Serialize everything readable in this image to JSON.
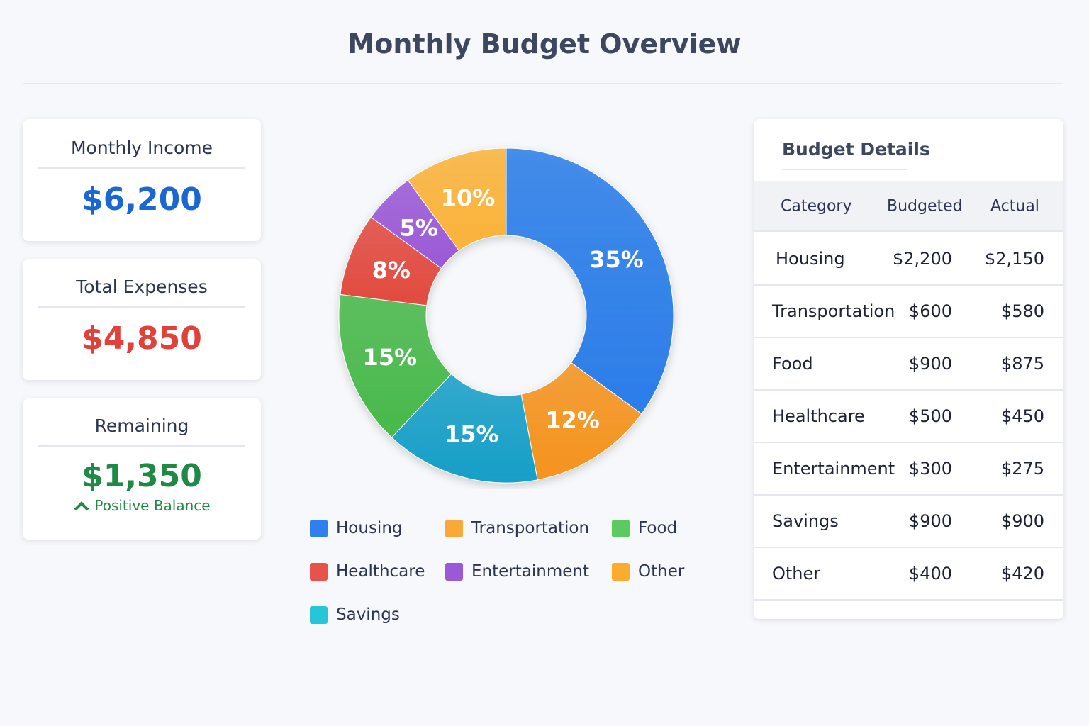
{
  "title": "Monthly Budget Overview",
  "cards": [
    {
      "label": "Monthly Income",
      "value": "$6,200",
      "color": "#1a66d2"
    },
    {
      "label": "Total Expenses",
      "value": "$4,850",
      "color": "#e0413a"
    },
    {
      "label": "Remaining",
      "value": "$1,350",
      "color": "#1f8a45",
      "note": "Positive Balance",
      "note_icon": "chevron-up-icon"
    }
  ],
  "chart_data": {
    "type": "pie",
    "donut": true,
    "slices": [
      {
        "name": "Housing",
        "value": 35,
        "label": "35%",
        "color": "#2a7de9"
      },
      {
        "name": "Transportation",
        "value": 12,
        "label": "12%",
        "color": "#f5931f"
      },
      {
        "name": "Savings",
        "value": 15,
        "label": "15%",
        "color": "#169fc8"
      },
      {
        "name": "Food",
        "value": 15,
        "label": "15%",
        "color": "#47b94a"
      },
      {
        "name": "Healthcare",
        "value": 8,
        "label": "8%",
        "color": "#e24a3f"
      },
      {
        "name": "Entertainment",
        "value": 5,
        "label": "5%",
        "color": "#9b59d6"
      },
      {
        "name": "Other",
        "value": 10,
        "label": "10%",
        "color": "#fbb33a"
      }
    ],
    "legend": [
      {
        "name": "Housing",
        "color": "#2f80ed"
      },
      {
        "name": "Transportation",
        "color": "#f9a93a"
      },
      {
        "name": "Food",
        "color": "#5ccb5f"
      },
      {
        "name": "Healthcare",
        "color": "#e5534b"
      },
      {
        "name": "Entertainment",
        "color": "#9b59d6"
      },
      {
        "name": "Other",
        "color": "#fbac2e"
      },
      {
        "name": "Savings",
        "color": "#26c6da"
      }
    ],
    "legend_position": "bottom"
  },
  "table": {
    "title": "Budget Details",
    "headers": [
      "Category",
      "Budgeted",
      "Actual"
    ],
    "rows": [
      [
        "Housing",
        "$2,200",
        "$2,150"
      ],
      [
        "Transportation",
        "$600",
        "$580"
      ],
      [
        "Food",
        "$900",
        "$875"
      ],
      [
        "Healthcare",
        "$500",
        "$450"
      ],
      [
        "Entertainment",
        "$300",
        "$275"
      ],
      [
        "Savings",
        "$900",
        "$900"
      ],
      [
        "Other",
        "$400",
        "$420"
      ]
    ]
  }
}
